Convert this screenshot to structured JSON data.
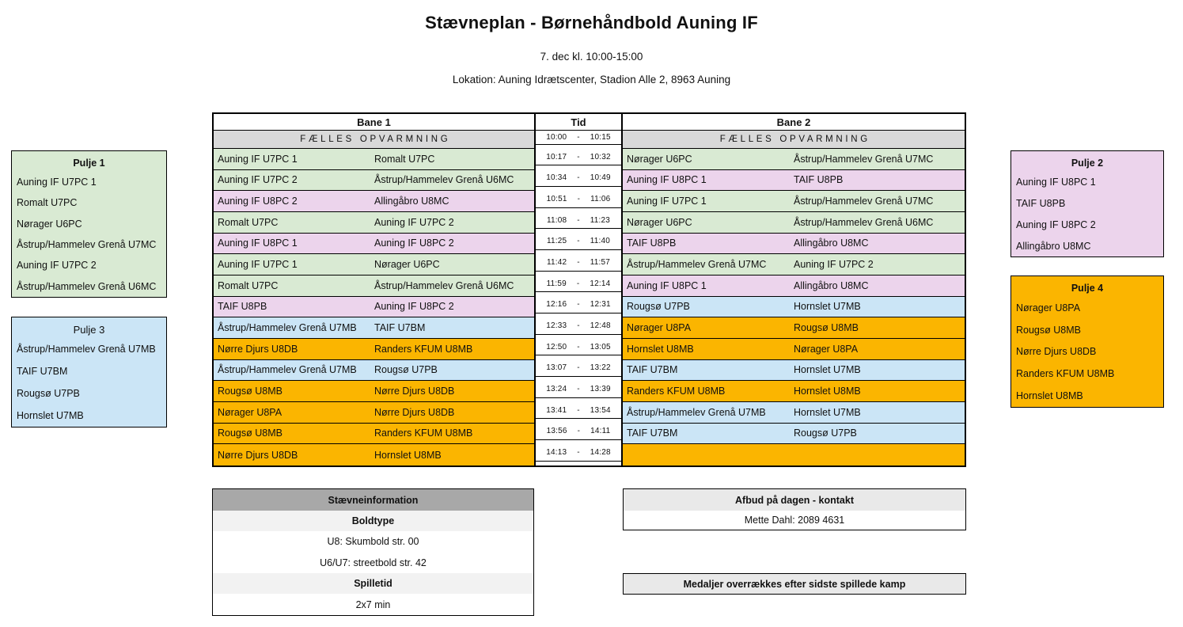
{
  "header": {
    "title": "Stævneplan - Børnehåndbold Auning IF",
    "datetime": "7. dec kl. 10:00-15:00",
    "location": "Lokation: Auning Idrætscenter, Stadion Alle 2, 8963 Auning"
  },
  "colors": {
    "green": "#d9ead3",
    "pink": "#ecd4ec",
    "blue": "#cbe5f6",
    "orange": "#fbb500",
    "gray_header": "#d9d9d9",
    "dark_gray": "#a8a8a8",
    "light_gray": "#f2f2f2",
    "lighter_gray": "#e9e9e9"
  },
  "schedule": {
    "col_bane1": "Bane 1",
    "col_tid": "Tid",
    "col_bane2": "Bane 2",
    "warmup_label": "FÆLLES OPVARMNING",
    "warmup_time": {
      "start": "10:00",
      "end": "10:15"
    },
    "time_separator": "-",
    "rows": [
      {
        "time": {
          "start": "10:17",
          "end": "10:32"
        },
        "bane1": {
          "home": "Auning IF U7PC 1",
          "away": "Romalt U7PC",
          "color": "green"
        },
        "bane2": {
          "home": "Nørager U6PC",
          "away": "Åstrup/Hammelev Grenå U7MC",
          "color": "green"
        }
      },
      {
        "time": {
          "start": "10:34",
          "end": "10:49"
        },
        "bane1": {
          "home": "Auning IF U7PC 2",
          "away": "Åstrup/Hammelev Grenå U6MC",
          "color": "green"
        },
        "bane2": {
          "home": "Auning IF U8PC 1",
          "away": "TAIF U8PB",
          "color": "pink"
        }
      },
      {
        "time": {
          "start": "10:51",
          "end": "11:06"
        },
        "bane1": {
          "home": "Auning IF U8PC 2",
          "away": "Allingåbro U8MC",
          "color": "pink"
        },
        "bane2": {
          "home": "Auning IF U7PC 1",
          "away": "Åstrup/Hammelev Grenå U7MC",
          "color": "green"
        }
      },
      {
        "time": {
          "start": "11:08",
          "end": "11:23"
        },
        "bane1": {
          "home": "Romalt U7PC",
          "away": "Auning IF U7PC 2",
          "color": "green"
        },
        "bane2": {
          "home": "Nørager U6PC",
          "away": "Åstrup/Hammelev Grenå U6MC",
          "color": "green"
        }
      },
      {
        "time": {
          "start": "11:25",
          "end": "11:40"
        },
        "bane1": {
          "home": "Auning IF U8PC 1",
          "away": "Auning IF U8PC 2",
          "color": "pink"
        },
        "bane2": {
          "home": "TAIF U8PB",
          "away": "Allingåbro U8MC",
          "color": "pink"
        }
      },
      {
        "time": {
          "start": "11:42",
          "end": "11:57"
        },
        "bane1": {
          "home": "Auning IF U7PC 1",
          "away": "Nørager U6PC",
          "color": "green"
        },
        "bane2": {
          "home": "Åstrup/Hammelev Grenå U7MC",
          "away": "Auning IF U7PC 2",
          "color": "green"
        }
      },
      {
        "time": {
          "start": "11:59",
          "end": "12:14"
        },
        "bane1": {
          "home": "Romalt U7PC",
          "away": "Åstrup/Hammelev Grenå U6MC",
          "color": "green"
        },
        "bane2": {
          "home": "Auning IF U8PC 1",
          "away": "Allingåbro U8MC",
          "color": "pink"
        }
      },
      {
        "time": {
          "start": "12:16",
          "end": "12:31"
        },
        "bane1": {
          "home": "TAIF U8PB",
          "away": "Auning IF U8PC 2",
          "color": "pink"
        },
        "bane2": {
          "home": "Rougsø U7PB",
          "away": "Hornslet U7MB",
          "color": "blue"
        }
      },
      {
        "time": {
          "start": "12:33",
          "end": "12:48"
        },
        "bane1": {
          "home": "Åstrup/Hammelev Grenå U7MB",
          "away": "TAIF U7BM",
          "color": "blue"
        },
        "bane2": {
          "home": "Nørager U8PA",
          "away": "Rougsø  U8MB",
          "color": "orange"
        }
      },
      {
        "time": {
          "start": "12:50",
          "end": "13:05"
        },
        "bane1": {
          "home": "Nørre Djurs U8DB",
          "away": "Randers KFUM U8MB",
          "color": "orange"
        },
        "bane2": {
          "home": "Hornslet U8MB",
          "away": "Nørager U8PA",
          "color": "orange"
        }
      },
      {
        "time": {
          "start": "13:07",
          "end": "13:22"
        },
        "bane1": {
          "home": "Åstrup/Hammelev Grenå U7MB",
          "away": "Rougsø U7PB",
          "color": "blue"
        },
        "bane2": {
          "home": "TAIF U7BM",
          "away": "Hornslet U7MB",
          "color": "blue"
        }
      },
      {
        "time": {
          "start": "13:24",
          "end": "13:39"
        },
        "bane1": {
          "home": "Rougsø  U8MB",
          "away": "Nørre Djurs U8DB",
          "color": "orange"
        },
        "bane2": {
          "home": "Randers KFUM U8MB",
          "away": "Hornslet U8MB",
          "color": "orange"
        }
      },
      {
        "time": {
          "start": "13:41",
          "end": "13:54"
        },
        "bane1": {
          "home": "Nørager U8PA",
          "away": "Nørre Djurs U8DB",
          "color": "orange"
        },
        "bane2": {
          "home": "Åstrup/Hammelev Grenå U7MB",
          "away": "Hornslet U7MB",
          "color": "blue"
        }
      },
      {
        "time": {
          "start": "13:56",
          "end": "14:11"
        },
        "bane1": {
          "home": "Rougsø  U8MB",
          "away": "Randers KFUM U8MB",
          "color": "orange"
        },
        "bane2": {
          "home": "TAIF U7BM",
          "away": "Rougsø U7PB",
          "color": "blue"
        }
      },
      {
        "time": {
          "start": "14:13",
          "end": "14:28"
        },
        "bane1": {
          "home": "Nørre Djurs U8DB",
          "away": "Hornslet U8MB",
          "color": "orange"
        },
        "bane2": {
          "home": "",
          "away": "",
          "color": "orange"
        }
      }
    ]
  },
  "pools": [
    {
      "name": "Pulje 1",
      "color": "green",
      "header_bold": true,
      "teams": [
        "Auning IF U7PC 1",
        "Romalt U7PC",
        "Nørager U6PC",
        "Åstrup/Hammelev Grenå U7MC",
        "Auning IF U7PC 2",
        "Åstrup/Hammelev Grenå U6MC"
      ]
    },
    {
      "name": "Pulje 2",
      "color": "pink",
      "header_bold": true,
      "teams": [
        "Auning IF U8PC 1",
        "TAIF U8PB",
        "Auning IF U8PC 2",
        "Allingåbro U8MC"
      ]
    },
    {
      "name": "Pulje 3",
      "color": "blue",
      "header_bold": false,
      "teams": [
        "Åstrup/Hammelev Grenå U7MB",
        "TAIF U7BM",
        "Rougsø U7PB",
        "Hornslet U7MB"
      ]
    },
    {
      "name": "Pulje 4",
      "color": "orange",
      "header_bold": true,
      "teams": [
        "Nørager U8PA",
        "Rougsø  U8MB",
        "Nørre Djurs U8DB",
        "Randers KFUM U8MB",
        "Hornslet U8MB"
      ]
    }
  ],
  "info_box": {
    "title": "Stævneinformation",
    "sections": [
      {
        "heading": "Boldtype",
        "lines": [
          "U8: Skumbold str. 00",
          "U6/U7: streetbold str. 42"
        ]
      },
      {
        "heading": "Spilletid",
        "lines": [
          "2x7 min"
        ]
      }
    ]
  },
  "contact_box": {
    "title": "Afbud på dagen - kontakt",
    "content": "Mette Dahl: 2089 4631"
  },
  "medals_box": {
    "text": "Medaljer overrækkes efter sidste spillede kamp"
  }
}
